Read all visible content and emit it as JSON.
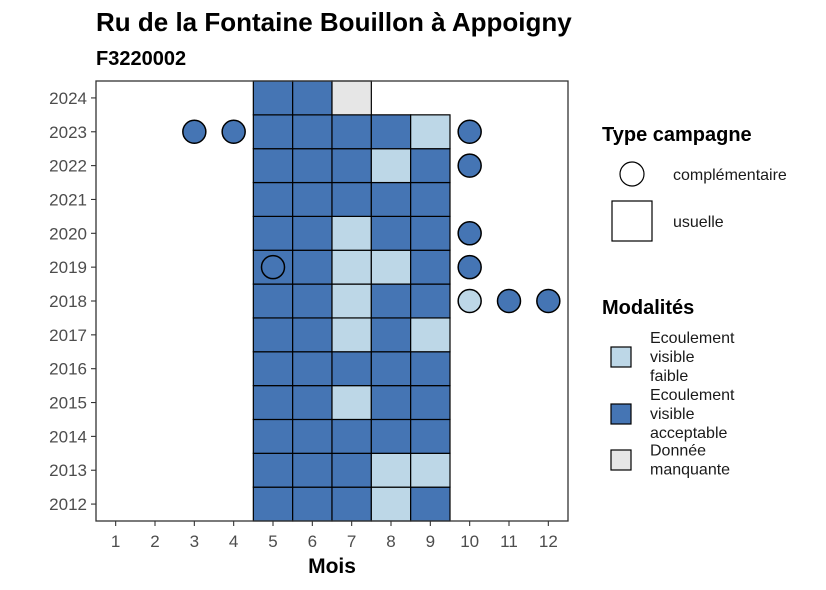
{
  "chart_data": {
    "type": "heatmap",
    "title": "Ru de la Fontaine Bouillon à Appoigny",
    "subtitle": "F3220002",
    "xlabel": "Mois",
    "ylabel": "",
    "x_ticks": [
      1,
      2,
      3,
      4,
      5,
      6,
      7,
      8,
      9,
      10,
      11,
      12
    ],
    "y_ticks": [
      2012,
      2013,
      2014,
      2015,
      2016,
      2017,
      2018,
      2019,
      2020,
      2021,
      2022,
      2023,
      2024
    ],
    "xlim": [
      0.5,
      12.5
    ],
    "ylim": [
      2011.5,
      2024.5
    ],
    "colors": {
      "faible": "#bdd7e7",
      "acceptable": "#4575b4",
      "manquante": "#e6e6e6"
    },
    "points": [
      {
        "year": 2012,
        "month": 5,
        "campagne": "usuelle",
        "modalite": "acceptable"
      },
      {
        "year": 2012,
        "month": 6,
        "campagne": "usuelle",
        "modalite": "acceptable"
      },
      {
        "year": 2012,
        "month": 7,
        "campagne": "usuelle",
        "modalite": "acceptable"
      },
      {
        "year": 2012,
        "month": 8,
        "campagne": "usuelle",
        "modalite": "faible"
      },
      {
        "year": 2012,
        "month": 9,
        "campagne": "usuelle",
        "modalite": "acceptable"
      },
      {
        "year": 2013,
        "month": 5,
        "campagne": "usuelle",
        "modalite": "acceptable"
      },
      {
        "year": 2013,
        "month": 6,
        "campagne": "usuelle",
        "modalite": "acceptable"
      },
      {
        "year": 2013,
        "month": 7,
        "campagne": "usuelle",
        "modalite": "acceptable"
      },
      {
        "year": 2013,
        "month": 8,
        "campagne": "usuelle",
        "modalite": "faible"
      },
      {
        "year": 2013,
        "month": 9,
        "campagne": "usuelle",
        "modalite": "faible"
      },
      {
        "year": 2014,
        "month": 5,
        "campagne": "usuelle",
        "modalite": "acceptable"
      },
      {
        "year": 2014,
        "month": 6,
        "campagne": "usuelle",
        "modalite": "acceptable"
      },
      {
        "year": 2014,
        "month": 7,
        "campagne": "usuelle",
        "modalite": "acceptable"
      },
      {
        "year": 2014,
        "month": 8,
        "campagne": "usuelle",
        "modalite": "acceptable"
      },
      {
        "year": 2014,
        "month": 9,
        "campagne": "usuelle",
        "modalite": "acceptable"
      },
      {
        "year": 2015,
        "month": 5,
        "campagne": "usuelle",
        "modalite": "acceptable"
      },
      {
        "year": 2015,
        "month": 6,
        "campagne": "usuelle",
        "modalite": "acceptable"
      },
      {
        "year": 2015,
        "month": 7,
        "campagne": "usuelle",
        "modalite": "faible"
      },
      {
        "year": 2015,
        "month": 8,
        "campagne": "usuelle",
        "modalite": "acceptable"
      },
      {
        "year": 2015,
        "month": 9,
        "campagne": "usuelle",
        "modalite": "acceptable"
      },
      {
        "year": 2016,
        "month": 5,
        "campagne": "usuelle",
        "modalite": "acceptable"
      },
      {
        "year": 2016,
        "month": 6,
        "campagne": "usuelle",
        "modalite": "acceptable"
      },
      {
        "year": 2016,
        "month": 7,
        "campagne": "usuelle",
        "modalite": "acceptable"
      },
      {
        "year": 2016,
        "month": 8,
        "campagne": "usuelle",
        "modalite": "acceptable"
      },
      {
        "year": 2016,
        "month": 9,
        "campagne": "usuelle",
        "modalite": "acceptable"
      },
      {
        "year": 2017,
        "month": 5,
        "campagne": "usuelle",
        "modalite": "acceptable"
      },
      {
        "year": 2017,
        "month": 6,
        "campagne": "usuelle",
        "modalite": "acceptable"
      },
      {
        "year": 2017,
        "month": 7,
        "campagne": "usuelle",
        "modalite": "faible"
      },
      {
        "year": 2017,
        "month": 8,
        "campagne": "usuelle",
        "modalite": "acceptable"
      },
      {
        "year": 2017,
        "month": 9,
        "campagne": "usuelle",
        "modalite": "faible"
      },
      {
        "year": 2018,
        "month": 5,
        "campagne": "usuelle",
        "modalite": "acceptable"
      },
      {
        "year": 2018,
        "month": 6,
        "campagne": "usuelle",
        "modalite": "acceptable"
      },
      {
        "year": 2018,
        "month": 7,
        "campagne": "usuelle",
        "modalite": "faible"
      },
      {
        "year": 2018,
        "month": 8,
        "campagne": "usuelle",
        "modalite": "acceptable"
      },
      {
        "year": 2018,
        "month": 9,
        "campagne": "usuelle",
        "modalite": "acceptable"
      },
      {
        "year": 2018,
        "month": 10,
        "campagne": "complémentaire",
        "modalite": "faible"
      },
      {
        "year": 2018,
        "month": 11,
        "campagne": "complémentaire",
        "modalite": "acceptable"
      },
      {
        "year": 2018,
        "month": 12,
        "campagne": "complémentaire",
        "modalite": "acceptable"
      },
      {
        "year": 2019,
        "month": 5,
        "campagne": "usuelle",
        "modalite": "acceptable"
      },
      {
        "year": 2019,
        "month": 5,
        "campagne": "complémentaire",
        "modalite": "acceptable"
      },
      {
        "year": 2019,
        "month": 6,
        "campagne": "usuelle",
        "modalite": "acceptable"
      },
      {
        "year": 2019,
        "month": 7,
        "campagne": "usuelle",
        "modalite": "faible"
      },
      {
        "year": 2019,
        "month": 8,
        "campagne": "usuelle",
        "modalite": "faible"
      },
      {
        "year": 2019,
        "month": 9,
        "campagne": "usuelle",
        "modalite": "acceptable"
      },
      {
        "year": 2019,
        "month": 10,
        "campagne": "complémentaire",
        "modalite": "acceptable"
      },
      {
        "year": 2020,
        "month": 5,
        "campagne": "usuelle",
        "modalite": "acceptable"
      },
      {
        "year": 2020,
        "month": 6,
        "campagne": "usuelle",
        "modalite": "acceptable"
      },
      {
        "year": 2020,
        "month": 7,
        "campagne": "usuelle",
        "modalite": "faible"
      },
      {
        "year": 2020,
        "month": 8,
        "campagne": "usuelle",
        "modalite": "acceptable"
      },
      {
        "year": 2020,
        "month": 9,
        "campagne": "usuelle",
        "modalite": "acceptable"
      },
      {
        "year": 2020,
        "month": 10,
        "campagne": "complémentaire",
        "modalite": "acceptable"
      },
      {
        "year": 2021,
        "month": 5,
        "campagne": "usuelle",
        "modalite": "acceptable"
      },
      {
        "year": 2021,
        "month": 6,
        "campagne": "usuelle",
        "modalite": "acceptable"
      },
      {
        "year": 2021,
        "month": 7,
        "campagne": "usuelle",
        "modalite": "acceptable"
      },
      {
        "year": 2021,
        "month": 8,
        "campagne": "usuelle",
        "modalite": "acceptable"
      },
      {
        "year": 2021,
        "month": 9,
        "campagne": "usuelle",
        "modalite": "acceptable"
      },
      {
        "year": 2022,
        "month": 5,
        "campagne": "usuelle",
        "modalite": "acceptable"
      },
      {
        "year": 2022,
        "month": 6,
        "campagne": "usuelle",
        "modalite": "acceptable"
      },
      {
        "year": 2022,
        "month": 7,
        "campagne": "usuelle",
        "modalite": "acceptable"
      },
      {
        "year": 2022,
        "month": 8,
        "campagne": "usuelle",
        "modalite": "faible"
      },
      {
        "year": 2022,
        "month": 9,
        "campagne": "usuelle",
        "modalite": "acceptable"
      },
      {
        "year": 2022,
        "month": 10,
        "campagne": "complémentaire",
        "modalite": "acceptable"
      },
      {
        "year": 2023,
        "month": 3,
        "campagne": "complémentaire",
        "modalite": "acceptable"
      },
      {
        "year": 2023,
        "month": 4,
        "campagne": "complémentaire",
        "modalite": "acceptable"
      },
      {
        "year": 2023,
        "month": 5,
        "campagne": "usuelle",
        "modalite": "acceptable"
      },
      {
        "year": 2023,
        "month": 6,
        "campagne": "usuelle",
        "modalite": "acceptable"
      },
      {
        "year": 2023,
        "month": 7,
        "campagne": "usuelle",
        "modalite": "acceptable"
      },
      {
        "year": 2023,
        "month": 8,
        "campagne": "usuelle",
        "modalite": "acceptable"
      },
      {
        "year": 2023,
        "month": 9,
        "campagne": "usuelle",
        "modalite": "faible"
      },
      {
        "year": 2023,
        "month": 10,
        "campagne": "complémentaire",
        "modalite": "acceptable"
      },
      {
        "year": 2024,
        "month": 5,
        "campagne": "usuelle",
        "modalite": "acceptable"
      },
      {
        "year": 2024,
        "month": 6,
        "campagne": "usuelle",
        "modalite": "acceptable"
      },
      {
        "year": 2024,
        "month": 7,
        "campagne": "usuelle",
        "modalite": "manquante"
      }
    ],
    "legend": {
      "type_campagne": {
        "title": "Type campagne",
        "items": [
          {
            "shape": "circle",
            "label": "complémentaire"
          },
          {
            "shape": "square",
            "label": "usuelle"
          }
        ]
      },
      "modalites": {
        "title": "Modalités",
        "items": [
          {
            "key": "faible",
            "label": [
              "Ecoulement",
              "visible",
              "faible"
            ]
          },
          {
            "key": "acceptable",
            "label": [
              "Ecoulement",
              "visible",
              "acceptable"
            ]
          },
          {
            "key": "manquante",
            "label": [
              "Donnée",
              "manquante"
            ]
          }
        ]
      }
    }
  }
}
